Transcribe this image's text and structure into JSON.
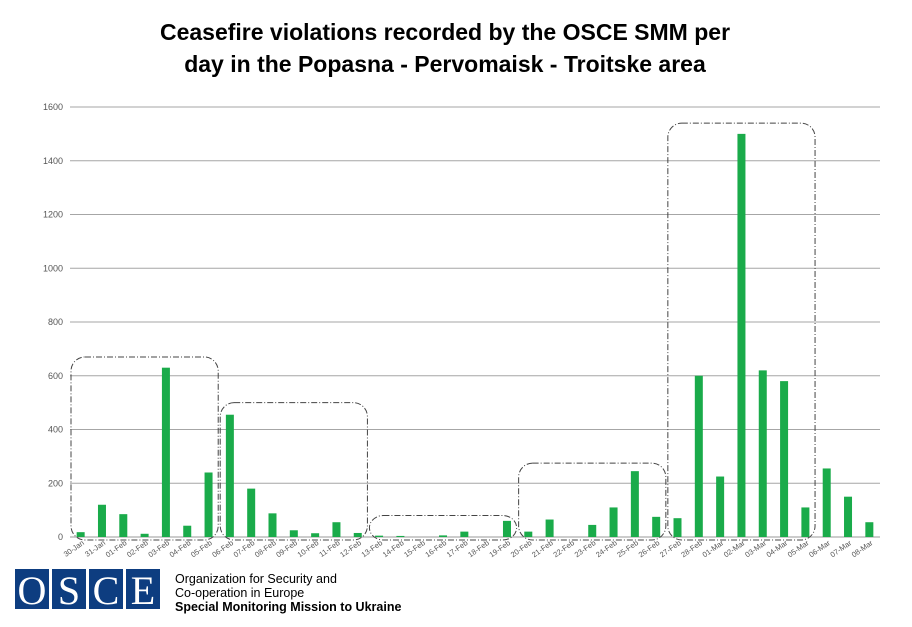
{
  "chart_data": {
    "type": "bar",
    "title_line1": "Ceasefire violations recorded by the OSCE SMM per",
    "title_line2": "day in the Popasna - Pervomaisk - Troitske area",
    "xlabel": "",
    "ylabel": "",
    "ylim": [
      0,
      1600
    ],
    "yticks": [
      0,
      200,
      400,
      600,
      800,
      1000,
      1200,
      1400,
      1600
    ],
    "grid": true,
    "bar_color": "#1aab4a",
    "categories": [
      "30-Jan",
      "31-Jan",
      "01-Feb",
      "02-Feb",
      "03-Feb",
      "04-Feb",
      "05-Feb",
      "06-Feb",
      "07-Feb",
      "08-Feb",
      "09-Feb",
      "10-Feb",
      "11-Feb",
      "12-Feb",
      "13-Feb",
      "14-Feb",
      "15-Feb",
      "16-Feb",
      "17-Feb",
      "18-Feb",
      "19-Feb",
      "20-Feb",
      "21-Feb",
      "22-Feb",
      "23-Feb",
      "24-Feb",
      "25-Feb",
      "26-Feb",
      "27-Feb",
      "28-Feb",
      "01-Mar",
      "02-Mar",
      "03-Mar",
      "04-Mar",
      "05-Mar",
      "06-Mar",
      "07-Mar",
      "08-Mar"
    ],
    "values": [
      18,
      120,
      85,
      12,
      630,
      42,
      240,
      455,
      180,
      88,
      25,
      14,
      55,
      15,
      5,
      4,
      0,
      6,
      20,
      0,
      60,
      20,
      65,
      0,
      45,
      110,
      245,
      75,
      70,
      600,
      225,
      1500,
      620,
      580,
      110,
      255,
      150,
      55
    ],
    "highlight_groups": [
      {
        "start": "30-Jan",
        "end": "05-Feb",
        "top_value": 670
      },
      {
        "start": "06-Feb",
        "end": "12-Feb",
        "top_value": 500
      },
      {
        "start": "13-Feb",
        "end": "19-Feb",
        "top_value": 80
      },
      {
        "start": "20-Feb",
        "end": "26-Feb",
        "top_value": 275
      },
      {
        "start": "27-Feb",
        "end": "05-Mar",
        "top_value": 1540
      }
    ]
  },
  "logo": {
    "letters": [
      "O",
      "S",
      "C",
      "E"
    ],
    "color": "#0d3d80",
    "line1": "Organization for Security and",
    "line2": "Co-operation in Europe",
    "line3": "Special Monitoring Mission to Ukraine"
  }
}
